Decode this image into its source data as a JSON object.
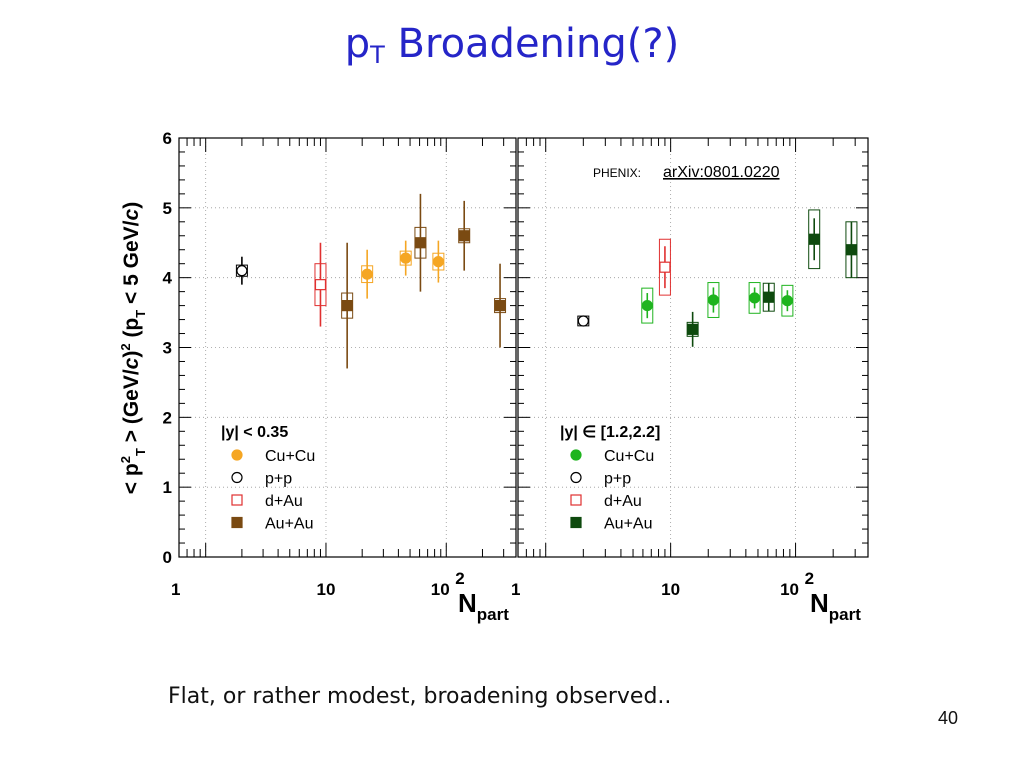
{
  "slide": {
    "title_main": "p",
    "title_sub": "T",
    "title_rest": " Broadening(?)",
    "caption": "Flat, or rather modest, broadening observed..",
    "page_number": "40"
  },
  "colors": {
    "title": "#2525c8",
    "cu_cu_left": "#f5a623",
    "au_au_left": "#7a4a12",
    "dau": "#e03030",
    "pp": "#000000",
    "cu_cu_right": "#1fb41f",
    "au_au_right": "#0e4a0e",
    "link": "#1a8fb0"
  },
  "chart_data": [
    {
      "type": "scatter",
      "panel": "left",
      "ylabel_parts": [
        "< p",
        "2",
        "T",
        " > (GeV/",
        "c",
        ")",
        "2",
        " (p",
        "T",
        " < 5 GeV/",
        "c",
        ")"
      ],
      "xlabel_main": "N",
      "xlabel_sub": "part",
      "x_scale": "log",
      "xlim": [
        0.6,
        380
      ],
      "ylim": [
        0,
        6
      ],
      "x_tick_labels": [
        "1",
        "10",
        "10",
        "2"
      ],
      "y_tick_labels": [
        "0",
        "1",
        "2",
        "3",
        "4",
        "5",
        "6"
      ],
      "legend_title": "|y| < 0.35",
      "legend": [
        "Cu+Cu",
        "p+p",
        "d+Au",
        "Au+Au"
      ],
      "series": [
        {
          "name": "p+p",
          "marker": "open-circle",
          "points": [
            {
              "x": 2,
              "y": 4.1,
              "err": 0.2,
              "sys": 0.08
            }
          ]
        },
        {
          "name": "d+Au",
          "marker": "open-square",
          "points": [
            {
              "x": 9,
              "y": 3.9,
              "err": 0.6,
              "sys": 0.3
            }
          ]
        },
        {
          "name": "Cu+Cu",
          "marker": "filled-circle",
          "points": [
            {
              "x": 22,
              "y": 4.05,
              "err": 0.35,
              "sys": 0.12
            },
            {
              "x": 46,
              "y": 4.28,
              "err": 0.25,
              "sys": 0.1
            },
            {
              "x": 86,
              "y": 4.23,
              "err": 0.3,
              "sys": 0.12
            }
          ]
        },
        {
          "name": "Au+Au",
          "marker": "filled-square",
          "points": [
            {
              "x": 15,
              "y": 3.6,
              "err": 0.9,
              "sys": 0.18
            },
            {
              "x": 61,
              "y": 4.5,
              "err": 0.7,
              "sys": 0.22
            },
            {
              "x": 141,
              "y": 4.6,
              "err": 0.5,
              "sys": 0.1
            },
            {
              "x": 280,
              "y": 3.6,
              "err": 0.6,
              "sys": 0.1
            }
          ]
        }
      ]
    },
    {
      "type": "scatter",
      "panel": "right",
      "annotation_prefix": "PHENIX: ",
      "annotation_link": "arXiv:0801.0220",
      "xlabel_main": "N",
      "xlabel_sub": "part",
      "x_scale": "log",
      "xlim": [
        0.6,
        380
      ],
      "ylim": [
        0,
        6
      ],
      "x_tick_labels": [
        "1",
        "10",
        "10",
        "2"
      ],
      "legend_title": "|y| ∈ [1.2,2.2]",
      "legend": [
        "Cu+Cu",
        "p+p",
        "d+Au",
        "Au+Au"
      ],
      "series": [
        {
          "name": "p+p",
          "marker": "open-circle",
          "points": [
            {
              "x": 2,
              "y": 3.38,
              "err": 0.07,
              "sys": 0.07
            }
          ]
        },
        {
          "name": "d+Au",
          "marker": "open-square",
          "points": [
            {
              "x": 9,
              "y": 4.15,
              "err": 0.3,
              "sys": 0.4
            }
          ]
        },
        {
          "name": "Cu+Cu",
          "marker": "filled-circle",
          "points": [
            {
              "x": 6.5,
              "y": 3.6,
              "err": 0.18,
              "sys": 0.25
            },
            {
              "x": 22,
              "y": 3.68,
              "err": 0.18,
              "sys": 0.25
            },
            {
              "x": 47,
              "y": 3.71,
              "err": 0.15,
              "sys": 0.22
            },
            {
              "x": 86,
              "y": 3.67,
              "err": 0.15,
              "sys": 0.22
            }
          ]
        },
        {
          "name": "Au+Au",
          "marker": "filled-square",
          "points": [
            {
              "x": 15,
              "y": 3.26,
              "err": 0.25,
              "sys": 0.1
            },
            {
              "x": 61,
              "y": 3.72,
              "err": 0.2,
              "sys": 0.2
            },
            {
              "x": 141,
              "y": 4.55,
              "err": 0.3,
              "sys": 0.42
            },
            {
              "x": 280,
              "y": 4.4,
              "err": 0.4,
              "sys": 0.4
            }
          ]
        }
      ]
    }
  ]
}
